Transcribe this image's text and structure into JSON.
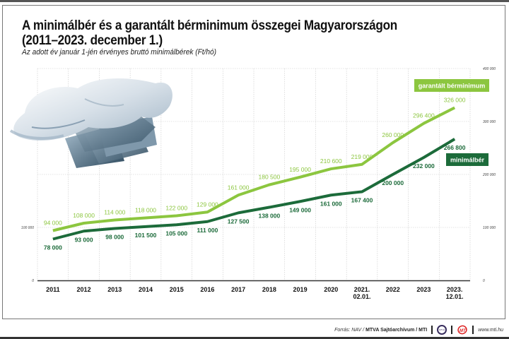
{
  "header": {
    "title_line1": "A minimálbér és a garantált bérminimum összegei Magyarországon",
    "title_line2": "(2011–2023. december 1.)",
    "subtitle": "Az adott év január 1-jén érvényes bruttó minimálbérek (Ft/hó)"
  },
  "illustration": {
    "icon": "hands-with-banknotes-icon"
  },
  "chart_data": {
    "type": "line",
    "title": "A minimálbér és a garantált bérminimum összegei Magyarországon (2011–2023. december 1.)",
    "subtitle": "Az adott év január 1-jén érvényes bruttó minimálbérek (Ft/hó)",
    "xlabel": "",
    "ylabel": "",
    "ylim": [
      0,
      400000
    ],
    "yticks": [
      0,
      100000,
      200000,
      300000,
      400000
    ],
    "ytick_labels": [
      "0",
      "100 000",
      "200 000",
      "300 000",
      "400 000"
    ],
    "left_ytick_labels": [
      "0",
      "100 000"
    ],
    "grid": true,
    "categories": [
      "2011",
      "2012",
      "2013",
      "2014",
      "2015",
      "2016",
      "2017",
      "2018",
      "2019",
      "2020",
      "2021.\n02.01.",
      "2022",
      "2023",
      "2023.\n12.01."
    ],
    "series": [
      {
        "name": "garantált bérminimum",
        "color": "#8cc63f",
        "values": [
          94000,
          108000,
          114000,
          118000,
          122000,
          129000,
          161000,
          180500,
          195000,
          210600,
          219000,
          260000,
          296400,
          326000
        ],
        "labels": [
          "94 000",
          "108 000",
          "114 000",
          "118 000",
          "122 000",
          "129 000",
          "161 000",
          "180 500",
          "195 000",
          "210 600",
          "219 000",
          "260 000",
          "296 400",
          "326 000"
        ]
      },
      {
        "name": "minimálbér",
        "color": "#1c6b3a",
        "values": [
          78000,
          93000,
          98000,
          101500,
          105000,
          111000,
          127500,
          138000,
          149000,
          161000,
          167400,
          200000,
          232000,
          266800
        ],
        "labels": [
          "78 000",
          "93 000",
          "98 000",
          "101 500",
          "105 000",
          "111 000",
          "127 500",
          "138 000",
          "149 000",
          "161 000",
          "167 400",
          "200 000",
          "232 000",
          "266 800"
        ]
      }
    ],
    "legend": "inline-right"
  },
  "footer": {
    "source_prefix": "Forrás: NAV / ",
    "source_bold": "MTVA Sajtóarchívum / MTI",
    "logo1_text": "MTVA",
    "logo2_text": "MTI",
    "url": "www.mti.hu"
  }
}
